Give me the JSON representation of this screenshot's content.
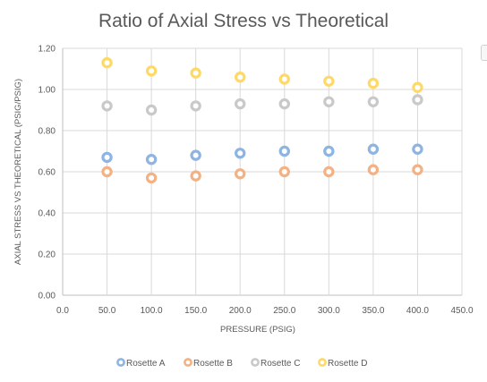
{
  "chart_data": {
    "type": "scatter",
    "title": "Ratio of Axial Stress vs Theoretical",
    "xlabel": "PRESSURE (PSIG)",
    "ylabel": "AXIAL STRESS VS THEORETICAL (PSIG/PSIG)",
    "xlim": [
      0,
      450
    ],
    "ylim": [
      0,
      1.2
    ],
    "x_ticks": [
      "0.0",
      "50.0",
      "100.0",
      "150.0",
      "200.0",
      "250.0",
      "300.0",
      "350.0",
      "400.0",
      "450.0"
    ],
    "y_ticks": [
      "0.00",
      "0.20",
      "0.40",
      "0.60",
      "0.80",
      "1.00",
      "1.20"
    ],
    "x": [
      50,
      100,
      150,
      200,
      250,
      300,
      350,
      400
    ],
    "grid": "vertical and horizontal",
    "legend_position": "bottom",
    "series": [
      {
        "name": "Rosette A",
        "color": "#8db4e2",
        "values": [
          0.67,
          0.66,
          0.68,
          0.69,
          0.7,
          0.7,
          0.71,
          0.71
        ]
      },
      {
        "name": "Rosette B",
        "color": "#f4b183",
        "values": [
          0.6,
          0.57,
          0.58,
          0.59,
          0.6,
          0.6,
          0.61,
          0.61
        ]
      },
      {
        "name": "Rosette C",
        "color": "#c9c9c9",
        "values": [
          0.92,
          0.9,
          0.92,
          0.93,
          0.93,
          0.94,
          0.94,
          0.95
        ]
      },
      {
        "name": "Rosette D",
        "color": "#ffd966",
        "values": [
          1.13,
          1.09,
          1.08,
          1.06,
          1.05,
          1.04,
          1.03,
          1.01
        ]
      }
    ]
  }
}
